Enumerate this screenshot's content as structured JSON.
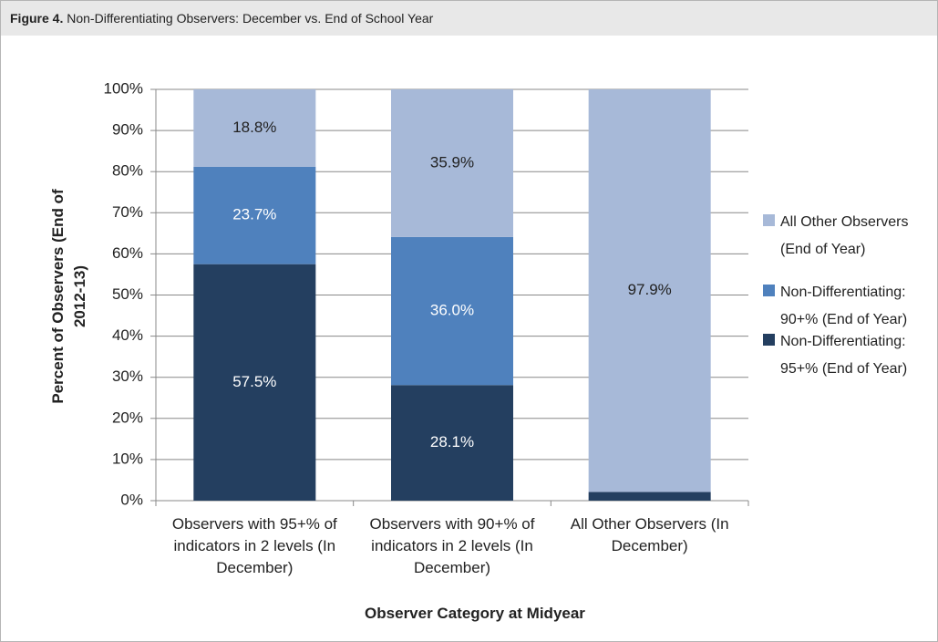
{
  "chart_data": {
    "type": "stacked_bar",
    "title_label": "Figure 4.",
    "title": "Non-Differentiating Observers: December vs. End of School Year",
    "x_label": "Observer Category at Midyear",
    "y_label": "Percent of Observers (End of 2012-13)",
    "categories": [
      "Observers with 95+% of indicators in 2 levels (In December)",
      "Observers with 90+% of indicators in 2 levels (In December)",
      "All Other Observers (In December)"
    ],
    "series": [
      {
        "name": "Non-Differentiating: 95+% (End of Year)",
        "color": "#243f60",
        "label_color": "#ffffff",
        "values": [
          57.5,
          28.1,
          2.1
        ],
        "value_labels": [
          "57.5%",
          "28.1%",
          null
        ]
      },
      {
        "name": "Non-Differentiating: 90+% (End of Year)",
        "color": "#4f81bd",
        "label_color": "#ffffff",
        "values": [
          23.7,
          36.0,
          0
        ],
        "value_labels": [
          "23.7%",
          "36.0%",
          null
        ]
      },
      {
        "name": "All Other Observers (End of Year)",
        "color": "#a7b9d8",
        "label_color": "#222222",
        "values": [
          18.8,
          35.9,
          97.9
        ],
        "value_labels": [
          "18.8%",
          "35.9%",
          "97.9%"
        ]
      }
    ],
    "ylim": [
      0,
      100
    ],
    "yticks": [
      {
        "value": 0,
        "label": "0%"
      },
      {
        "value": 10,
        "label": "10%"
      },
      {
        "value": 20,
        "label": "20%"
      },
      {
        "value": 30,
        "label": "30%"
      },
      {
        "value": 40,
        "label": "40%"
      },
      {
        "value": 50,
        "label": "50%"
      },
      {
        "value": 60,
        "label": "60%"
      },
      {
        "value": 70,
        "label": "70%"
      },
      {
        "value": 80,
        "label": "80%"
      },
      {
        "value": 90,
        "label": "90%"
      },
      {
        "value": 100,
        "label": "100%"
      }
    ],
    "grid": true,
    "legend": "right"
  }
}
